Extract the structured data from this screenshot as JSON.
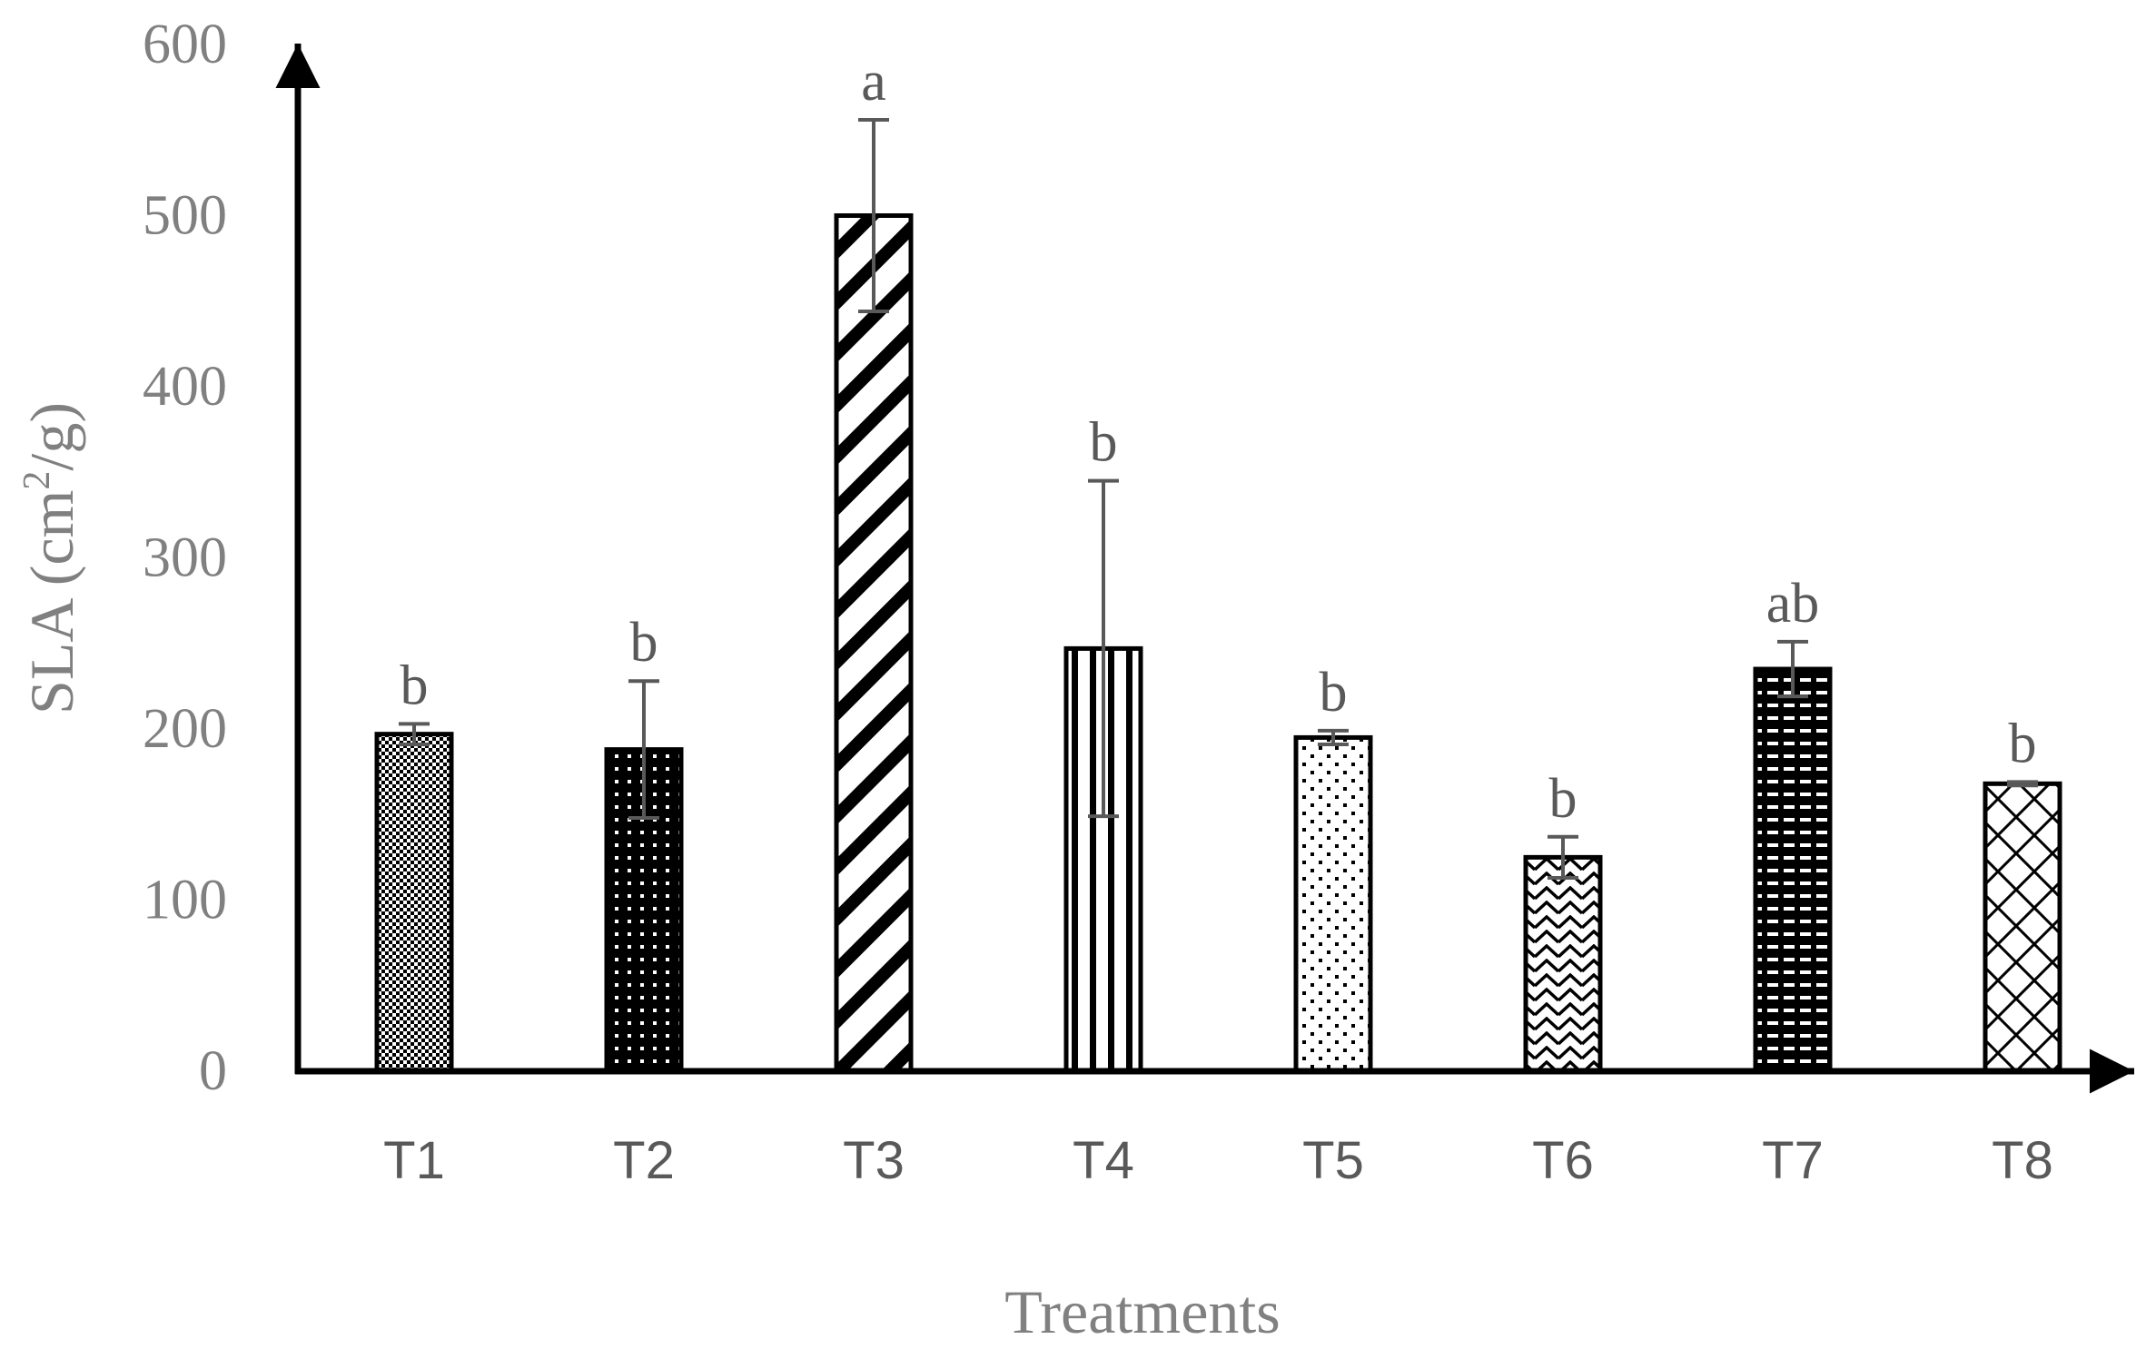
{
  "chart_data": {
    "type": "bar",
    "title": "",
    "xlabel": "Treatments",
    "ylabel_prefix": "SLA (cm",
    "ylabel_sup": "2",
    "ylabel_suffix": "/g)",
    "ylim": [
      0,
      600
    ],
    "yticks": [
      0,
      100,
      200,
      300,
      400,
      500,
      600
    ],
    "grid": false,
    "legend": "none",
    "categories": [
      "T1",
      "T2",
      "T3",
      "T4",
      "T5",
      "T6",
      "T7",
      "T8"
    ],
    "values": [
      197,
      188,
      500,
      247,
      195,
      125,
      235,
      168
    ],
    "error": [
      6,
      40,
      56,
      98,
      4,
      12,
      16,
      1
    ],
    "significance": [
      "b",
      "b",
      "a",
      "b",
      "b",
      "b",
      "ab",
      "b"
    ],
    "patterns": [
      "fine-check",
      "dense-dots",
      "diagonal",
      "vertical",
      "sparse-dots",
      "zigzag",
      "dashes",
      "cross-hatch"
    ]
  },
  "colors": {
    "bar_outline": "#000000",
    "axis": "#000000",
    "error_bar": "#595959",
    "tick_text": "#808080",
    "label_text": "#595959"
  }
}
